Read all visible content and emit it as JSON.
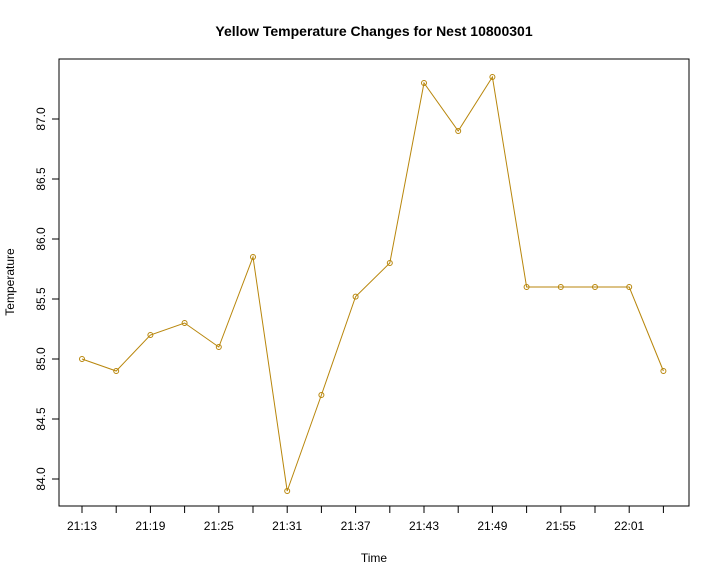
{
  "chart_data": {
    "type": "line",
    "title": "Yellow Temperature Changes for Nest 10800301",
    "xlabel": "Time",
    "ylabel": "Temperature",
    "x": [
      "21:13",
      "21:16",
      "21:19",
      "21:22",
      "21:25",
      "21:28",
      "21:31",
      "21:34",
      "21:37",
      "21:40",
      "21:43",
      "21:46",
      "21:49",
      "21:52",
      "21:55",
      "21:58",
      "22:01",
      "22:04"
    ],
    "x_tick_labels": [
      "21:13",
      "21:19",
      "21:25",
      "21:31",
      "21:37",
      "21:43",
      "21:49",
      "21:55",
      "22:01"
    ],
    "y_ticks": [
      84.0,
      84.5,
      85.0,
      85.5,
      86.0,
      86.5,
      87.0
    ],
    "y_tick_labels": [
      "84.0",
      "84.5",
      "85.0",
      "85.5",
      "86.0",
      "86.5",
      "87.0"
    ],
    "ylim": [
      83.9,
      87.35
    ],
    "grid": false,
    "legend": "none",
    "series": [
      {
        "color": "#b8860b",
        "marker": "open-circle",
        "values": [
          85.0,
          84.9,
          85.2,
          85.3,
          85.1,
          85.85,
          83.9,
          84.7,
          85.52,
          85.8,
          87.3,
          86.9,
          87.35,
          85.6,
          85.6,
          85.6,
          85.6,
          84.9
        ]
      }
    ]
  }
}
